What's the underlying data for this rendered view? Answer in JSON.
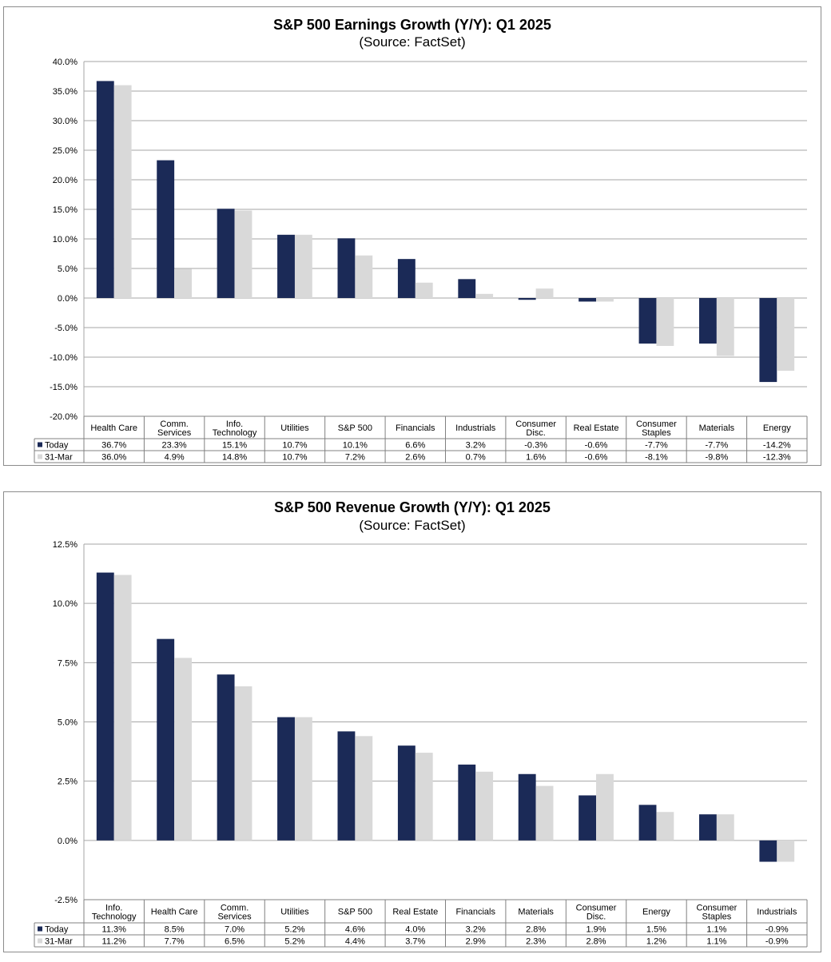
{
  "colors": {
    "today": "#1b2a57",
    "previous": "#d9d9d9",
    "grid": "#a6a6a6"
  },
  "chart_data": [
    {
      "type": "bar",
      "title": "S&P 500 Earnings Growth (Y/Y): Q1 2025",
      "subtitle": "(Source: FactSet)",
      "categories": [
        [
          "Health Care"
        ],
        [
          "Comm.",
          "Services"
        ],
        [
          "Info.",
          "Technology"
        ],
        [
          "Utilities"
        ],
        [
          "S&P 500"
        ],
        [
          "Financials"
        ],
        [
          "Industrials"
        ],
        [
          "Consumer",
          "Disc."
        ],
        [
          "Real Estate"
        ],
        [
          "Consumer",
          "Staples"
        ],
        [
          "Materials"
        ],
        [
          "Energy"
        ]
      ],
      "series": [
        {
          "name": "Today",
          "values": [
            36.7,
            23.3,
            15.1,
            10.7,
            10.1,
            6.6,
            3.2,
            -0.3,
            -0.6,
            -7.7,
            -7.7,
            -14.2
          ],
          "labels": [
            "36.7%",
            "23.3%",
            "15.1%",
            "10.7%",
            "10.1%",
            "6.6%",
            "3.2%",
            "-0.3%",
            "-0.6%",
            "-7.7%",
            "-7.7%",
            "-14.2%"
          ]
        },
        {
          "name": "31-Mar",
          "values": [
            36.0,
            4.9,
            14.8,
            10.7,
            7.2,
            2.6,
            0.7,
            1.6,
            -0.6,
            -8.1,
            -9.8,
            -12.3
          ],
          "labels": [
            "36.0%",
            "4.9%",
            "14.8%",
            "10.7%",
            "7.2%",
            "2.6%",
            "0.7%",
            "1.6%",
            "-0.6%",
            "-8.1%",
            "-9.8%",
            "-12.3%"
          ]
        }
      ],
      "yticks": [
        "40.0%",
        "35.0%",
        "30.0%",
        "25.0%",
        "20.0%",
        "15.0%",
        "10.0%",
        "5.0%",
        "0.0%",
        "-5.0%",
        "-10.0%",
        "-15.0%",
        "-20.0%"
      ],
      "ylim": [
        -20,
        40
      ],
      "grid": true,
      "legend": "data table below chart"
    },
    {
      "type": "bar",
      "title": "S&P 500 Revenue Growth (Y/Y): Q1 2025",
      "subtitle": "(Source: FactSet)",
      "categories": [
        [
          "Info.",
          "Technology"
        ],
        [
          "Health Care"
        ],
        [
          "Comm.",
          "Services"
        ],
        [
          "Utilities"
        ],
        [
          "S&P 500"
        ],
        [
          "Real Estate"
        ],
        [
          "Financials"
        ],
        [
          "Materials"
        ],
        [
          "Consumer",
          "Disc."
        ],
        [
          "Energy"
        ],
        [
          "Consumer",
          "Staples"
        ],
        [
          "Industrials"
        ]
      ],
      "series": [
        {
          "name": "Today",
          "values": [
            11.3,
            8.5,
            7.0,
            5.2,
            4.6,
            4.0,
            3.2,
            2.8,
            1.9,
            1.5,
            1.1,
            -0.9
          ],
          "labels": [
            "11.3%",
            "8.5%",
            "7.0%",
            "5.2%",
            "4.6%",
            "4.0%",
            "3.2%",
            "2.8%",
            "1.9%",
            "1.5%",
            "1.1%",
            "-0.9%"
          ]
        },
        {
          "name": "31-Mar",
          "values": [
            11.2,
            7.7,
            6.5,
            5.2,
            4.4,
            3.7,
            2.9,
            2.3,
            2.8,
            1.2,
            1.1,
            -0.9
          ],
          "labels": [
            "11.2%",
            "7.7%",
            "6.5%",
            "5.2%",
            "4.4%",
            "3.7%",
            "2.9%",
            "2.3%",
            "2.8%",
            "1.2%",
            "1.1%",
            "-0.9%"
          ]
        }
      ],
      "yticks": [
        "12.5%",
        "10.0%",
        "7.5%",
        "5.0%",
        "2.5%",
        "0.0%",
        "-2.5%"
      ],
      "ylim": [
        -2.5,
        12.5
      ],
      "grid": true,
      "legend": "data table below chart"
    }
  ]
}
